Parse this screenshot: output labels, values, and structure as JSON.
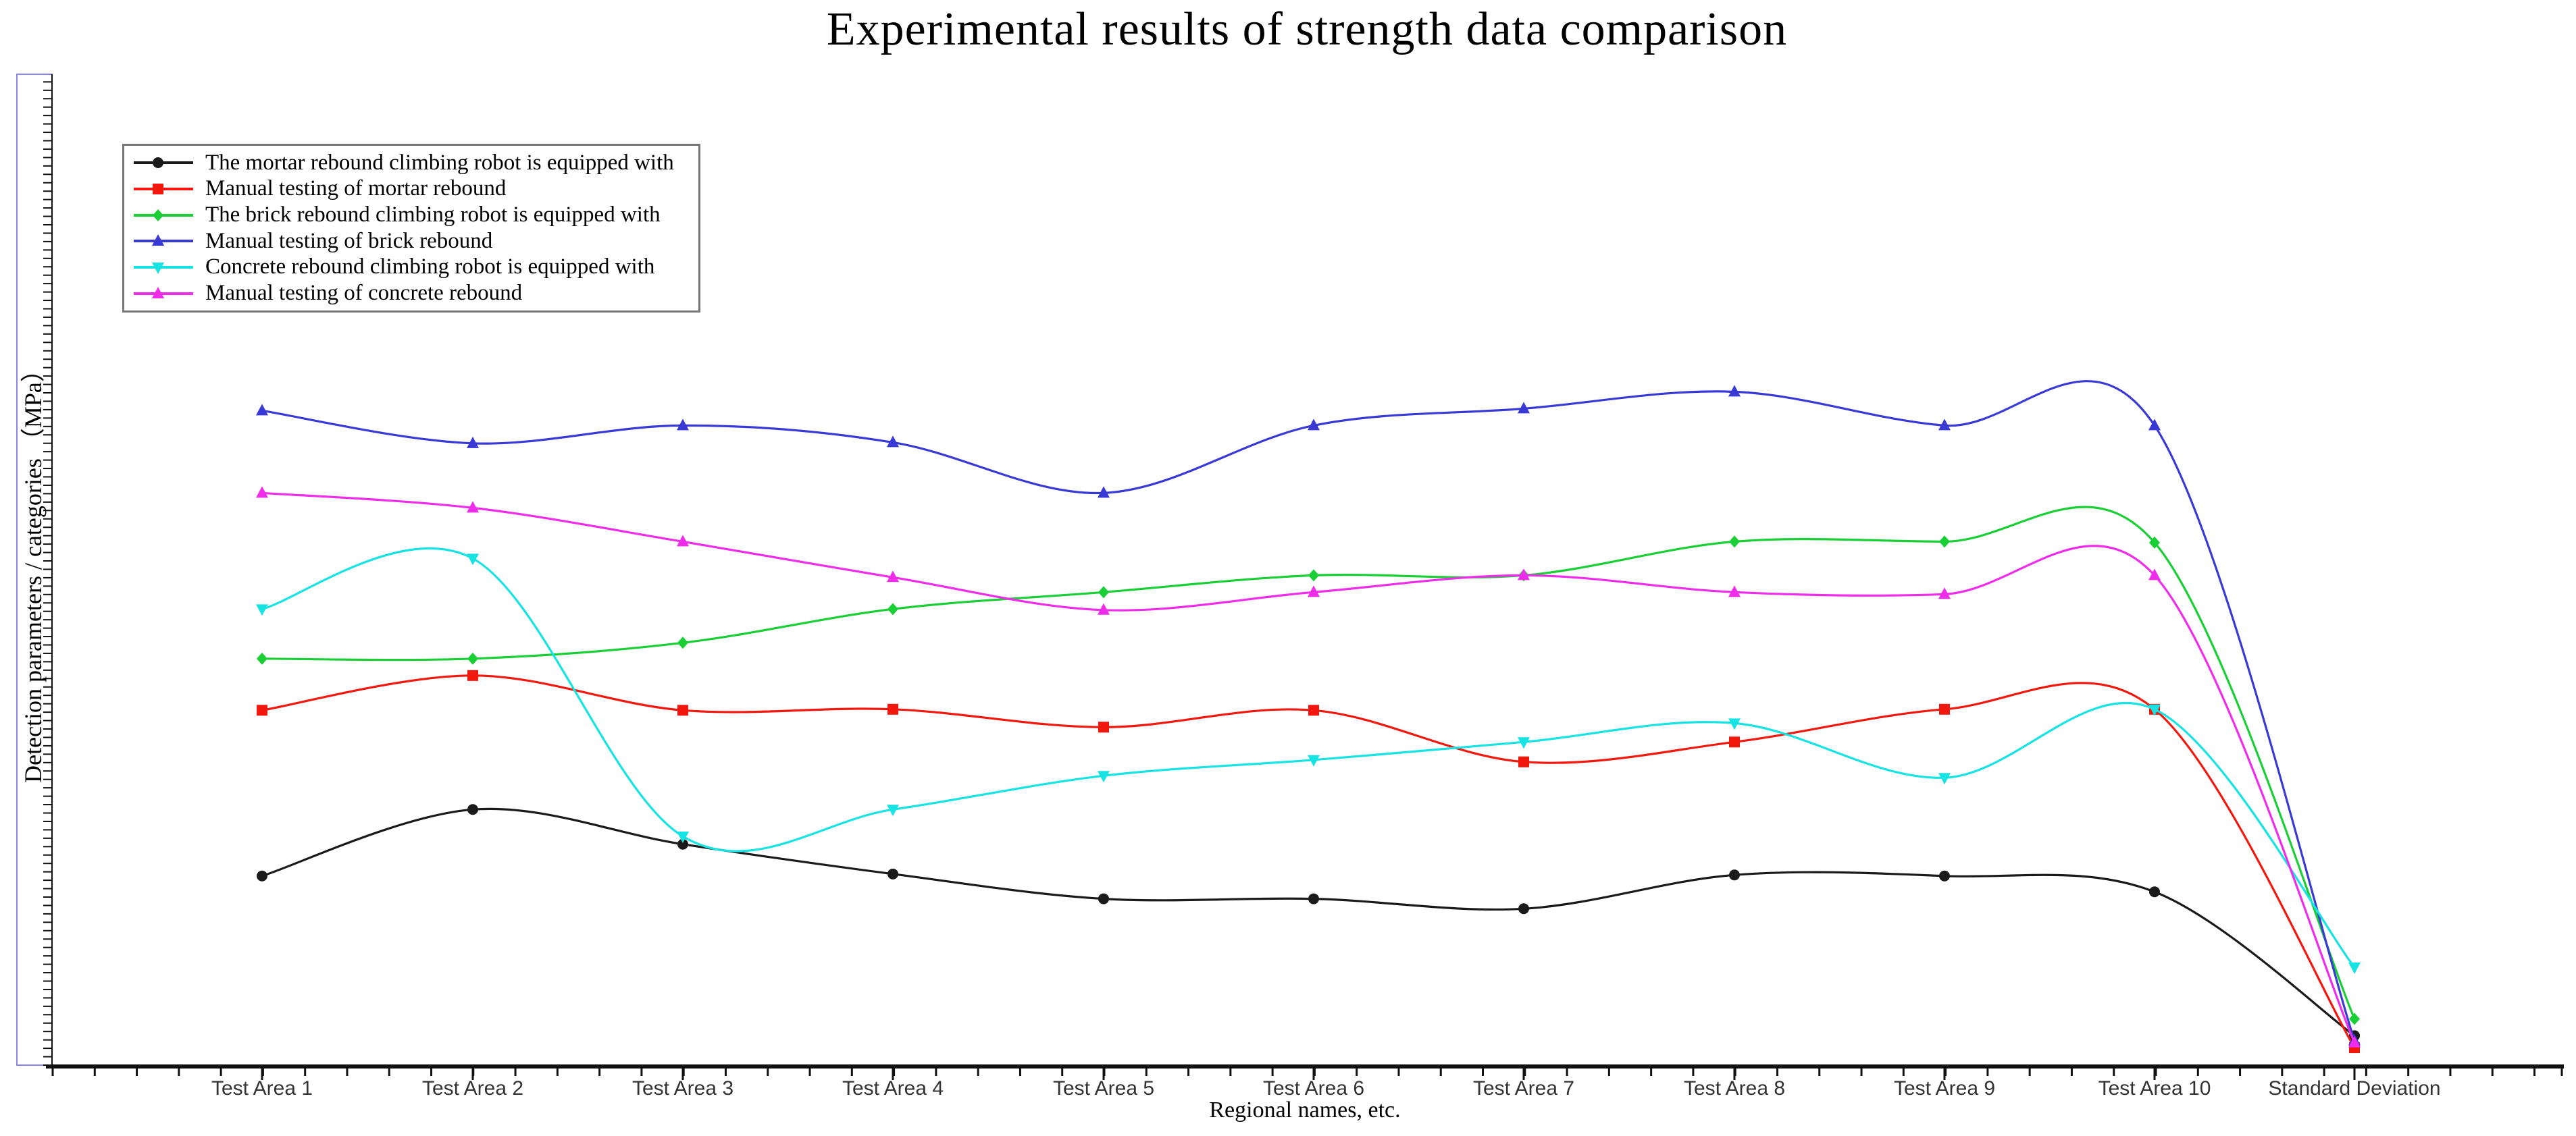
{
  "title": "Experimental results of strength data comparison",
  "axes": {
    "y_label": "Detection parameters / categories （MPa）",
    "x_label": "Regional names, etc."
  },
  "colors": {
    "axis": "#111111",
    "frame_box": "#8585f2",
    "legend_border": "#767676",
    "tick_label": "#333333"
  },
  "chart_data": {
    "type": "line",
    "title": "Experimental results of strength data comparison",
    "xlabel": "Regional names, etc.",
    "ylabel": "Detection parameters / categories （MPa）",
    "legend_position": "top-left",
    "grid": false,
    "ylim": [
      0,
      100
    ],
    "categories": [
      "Test Area 1",
      "Test Area 2",
      "Test Area 3",
      "Test Area 4",
      "Test Area 5",
      "Test Area 6",
      "Test Area 7",
      "Test Area 8",
      "Test Area 9",
      "Test Area 10",
      "Standard Deviation"
    ],
    "series": [
      {
        "name": "The mortar rebound climbing robot is equipped with",
        "color": "#1a1a1a",
        "marker": "circle",
        "values": [
          19.2,
          25.9,
          22.4,
          19.4,
          16.9,
          16.9,
          15.9,
          19.3,
          19.2,
          17.6,
          3.1
        ]
      },
      {
        "name": "Manual testing of mortar rebound",
        "color": "#f2180d",
        "marker": "square",
        "values": [
          35.9,
          39.4,
          35.9,
          36.0,
          34.2,
          35.9,
          30.7,
          32.7,
          36.0,
          36.0,
          1.9
        ]
      },
      {
        "name": "The brick rebound climbing robot is equipped with",
        "color": "#19cf35",
        "marker": "diamond",
        "values": [
          41.1,
          41.1,
          42.7,
          46.1,
          47.8,
          49.5,
          49.5,
          52.9,
          52.9,
          52.8,
          4.8
        ]
      },
      {
        "name": "Manual testing of brick rebound",
        "color": "#3939d6",
        "marker": "triangle-up",
        "values": [
          66.1,
          62.8,
          64.6,
          62.9,
          57.8,
          64.6,
          66.3,
          68.0,
          64.6,
          64.6,
          2.6
        ]
      },
      {
        "name": "Concrete rebound climbing robot is equipped with",
        "color": "#17e3e3",
        "marker": "triangle-down",
        "values": [
          46.1,
          51.2,
          23.2,
          25.9,
          29.3,
          30.9,
          32.7,
          34.6,
          29.1,
          36.0,
          10.0
        ]
      },
      {
        "name": "Manual testing of concrete rebound",
        "color": "#ef2cea",
        "marker": "triangle-up",
        "values": [
          57.8,
          56.3,
          52.9,
          49.3,
          46.0,
          47.8,
          49.5,
          47.8,
          47.6,
          49.5,
          2.4
        ]
      }
    ]
  }
}
